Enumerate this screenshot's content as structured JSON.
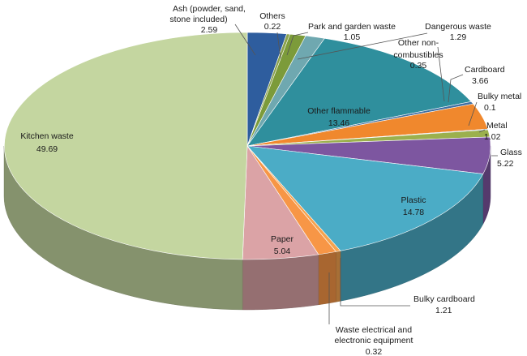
{
  "chart_data": {
    "type": "pie",
    "title": "",
    "unit": "%",
    "slices": [
      {
        "label": "Ash (powder, sand, stone included)",
        "value": 2.59,
        "value_text": "2.59",
        "color": "#2e5d9e"
      },
      {
        "label": "Others",
        "value": 0.22,
        "value_text": "0.22",
        "color": "#8aa14c"
      },
      {
        "label": "Park and garden waste",
        "value": 1.05,
        "value_text": "1.05",
        "color": "#7c9b3a"
      },
      {
        "label": "Dangerous waste",
        "value": 1.29,
        "value_text": "1.29",
        "color": "#6fa8b0"
      },
      {
        "label": "Other flammable",
        "value": 13.46,
        "value_text": "13.46",
        "color": "#2f8f9d"
      },
      {
        "label": "Other non-combustibles",
        "value": 0.35,
        "value_text": "0.35",
        "color": "#3f6fa3"
      },
      {
        "label": "Cardboard",
        "value": 3.66,
        "value_text": "3.66",
        "color": "#f0882d"
      },
      {
        "label": "Bulky metal",
        "value": 0.1,
        "value_text": "0.1",
        "color": "#3c6ebf"
      },
      {
        "label": "Metal",
        "value": 1.02,
        "value_text": "1.02",
        "color": "#9bb04d"
      },
      {
        "label": "Glass",
        "value": 5.22,
        "value_text": "5.22",
        "color": "#7d56a0"
      },
      {
        "label": "Plastic",
        "value": 14.78,
        "value_text": "14.78",
        "color": "#4bacc6"
      },
      {
        "label": "Waste electrical and electronic equipment",
        "value": 0.32,
        "value_text": "0.32",
        "color": "#f5a34f"
      },
      {
        "label": "Bulky cardboard",
        "value": 1.21,
        "value_text": "1.21",
        "color": "#f79646"
      },
      {
        "label": "Paper",
        "value": 5.04,
        "value_text": "5.04",
        "color": "#dba3a6"
      },
      {
        "label": "Kitchen waste",
        "value": 49.69,
        "value_text": "49.69",
        "color": "#c4d6a0"
      }
    ]
  }
}
